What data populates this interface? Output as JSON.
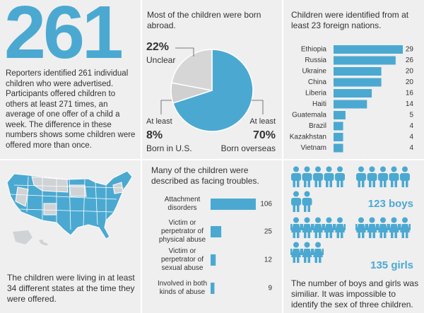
{
  "headline": {
    "number": "261",
    "text": "Reporters identified 261 individual children who were advertised.  Participants offered children to others at least 271 times, an average of one offer of a child a week. The difference in these numbers shows some children were offered more than once."
  },
  "chart_data": [
    {
      "type": "pie",
      "title": "Most of the children were born abroad.",
      "categories": [
        "Unclear",
        "Born in U.S.",
        "Born overseas"
      ],
      "values": [
        22,
        8,
        70
      ],
      "value_labels": [
        "22%",
        "8%",
        "70%"
      ],
      "annotations": [
        "At least",
        "At least"
      ],
      "colors": [
        "#d6d6d6",
        "#d0d0d0",
        "#4ba9d1"
      ]
    },
    {
      "type": "hbar",
      "title": "Children were identified from at least 23 foreign nations.",
      "categories": [
        "Ethiopia",
        "Russia",
        "Ukraine",
        "China",
        "Liberia",
        "Haiti",
        "Guatemala",
        "Brazil",
        "Kazakhstan",
        "Vietnam"
      ],
      "values": [
        29,
        26,
        20,
        20,
        16,
        14,
        5,
        4,
        4,
        4
      ],
      "color": "#4ba9d1"
    },
    {
      "type": "hbar2",
      "title": "Many of the children were described as facing troubles.",
      "categories": [
        "Attachment disorders",
        "Victim or perpetrator of physical abuse",
        "Victim or perpetrator of sexual abuse",
        "Involved in both kinds of abuse"
      ],
      "values": [
        106,
        25,
        12,
        9
      ],
      "color": "#4ba9d1"
    }
  ],
  "map": {
    "caption": "The children were living in at least 34 different states at the time they were offered."
  },
  "pictogram": {
    "groups": [
      {
        "label": "123 boys"
      },
      {
        "label": "135 girls"
      }
    ],
    "caption": "The number of boys and girls was similiar. It was impossible to identify the sex of three children."
  }
}
